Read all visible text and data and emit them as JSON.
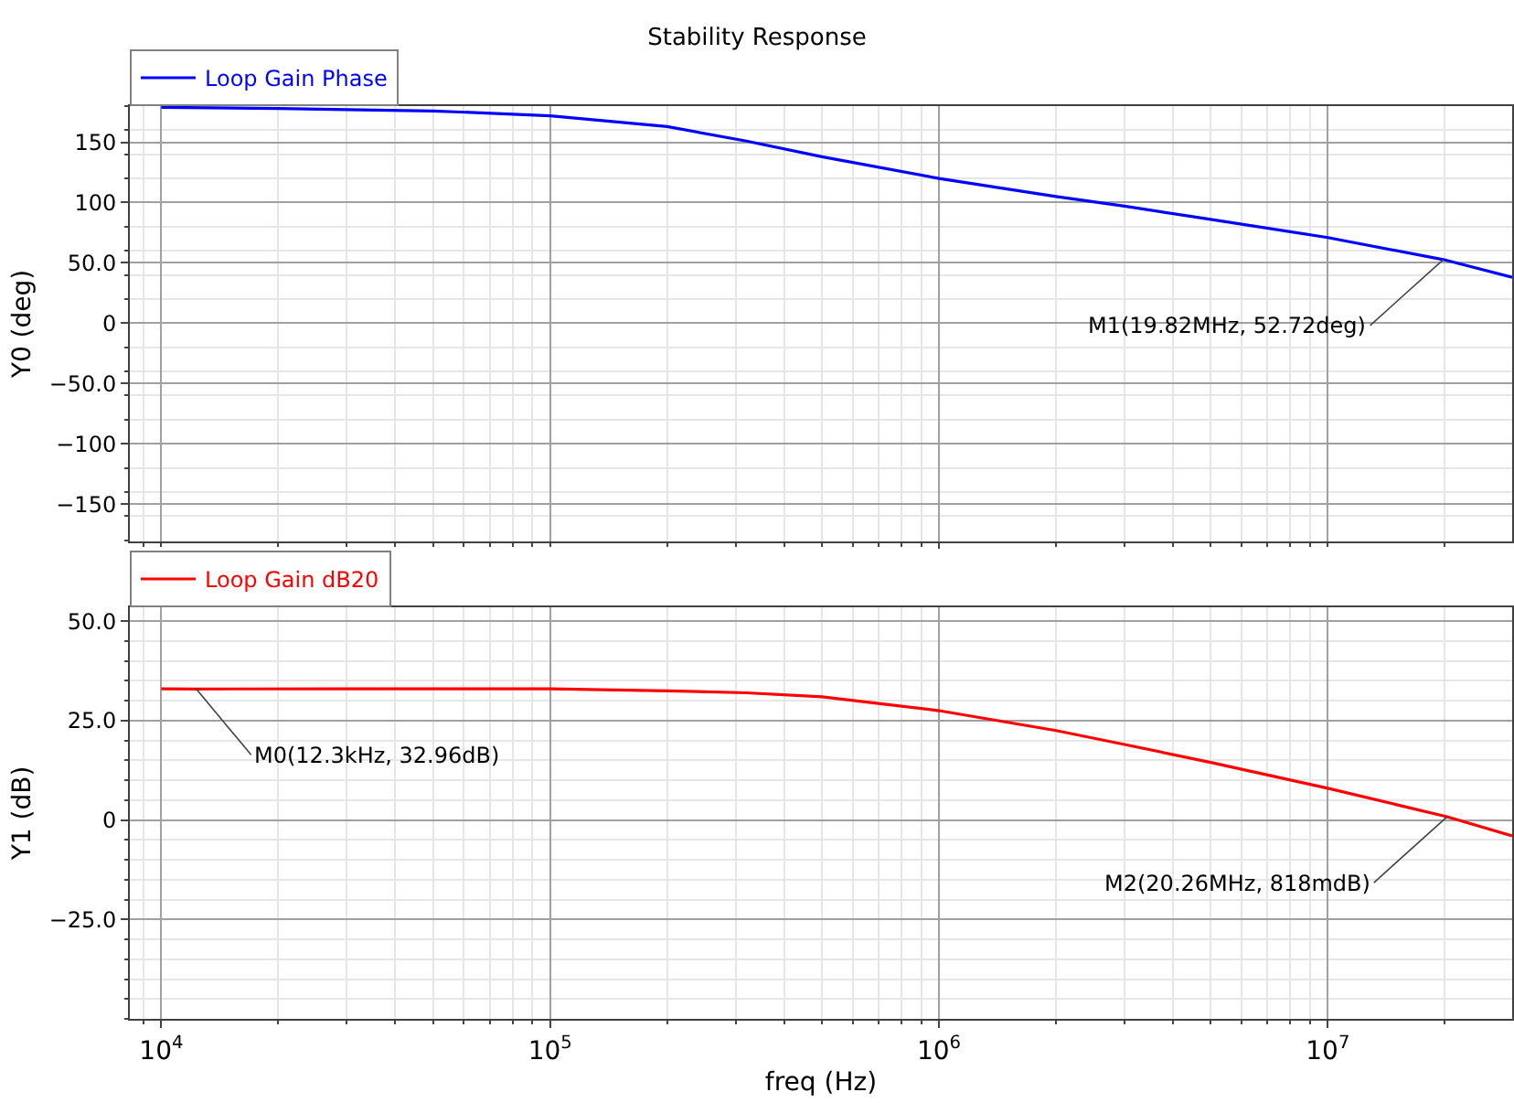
{
  "chart_data": [
    {
      "type": "line",
      "title": "Stability Response",
      "ylabel": "Y0 (deg)",
      "log": "x",
      "xlim": [
        8300,
        29800000
      ],
      "xticks": [
        {
          "value": 10000,
          "label": null
        },
        {
          "value": 100000,
          "label": null
        },
        {
          "value": 1000000,
          "label": null
        },
        {
          "value": 10000000,
          "label": null
        }
      ],
      "ylim": [
        -181,
        180
      ],
      "yticks": [
        150,
        100,
        {
          "value": 50,
          "label": "50.0"
        },
        0,
        {
          "value": -50,
          "label": "−50.0"
        },
        {
          "value": -100,
          "label": "−100"
        },
        {
          "value": -150,
          "label": "−150"
        }
      ],
      "grid": true,
      "legend": "top left",
      "tick_labels": "y",
      "series": [
        {
          "name": "Loop Gain Phase",
          "color": "#0000ff",
          "x": [
            10000,
            20000,
            30000,
            50000,
            100000,
            200000,
            320000,
            500000,
            1000000,
            2000000,
            3000000,
            5000000,
            10000000,
            19820000,
            29800000
          ],
          "values": [
            179,
            178,
            177,
            176,
            172,
            163,
            151,
            138,
            120,
            105,
            97,
            86,
            71,
            52.72,
            38
          ]
        }
      ],
      "annotations": [
        {
          "text": "M1(19.82MHz, 52.72deg)",
          "x": 19820000,
          "y": 52.72
        }
      ]
    },
    {
      "type": "line",
      "xlabel": "freq (Hz)",
      "ylabel": "Y1 (dB)",
      "log": "x",
      "xlim": [
        8300,
        29800000
      ],
      "xticks": [
        {
          "value": 10000,
          "label": "10$^{4}$"
        },
        {
          "value": 100000,
          "label": "10$^{5}$"
        },
        {
          "value": 1000000,
          "label": "10$^{6}$"
        },
        {
          "value": 10000000,
          "label": "10$^{7}$"
        }
      ],
      "ylim": [
        -50,
        53.5
      ],
      "yticks": [
        {
          "value": 50,
          "label": "50.0"
        },
        {
          "value": 25,
          "label": "25.0"
        },
        0,
        {
          "value": -25,
          "label": "−25.0"
        }
      ],
      "grid": true,
      "legend": "top left",
      "series": [
        {
          "name": "Loop Gain dB20",
          "color": "#ff0000",
          "x": [
            10000,
            12300,
            30000,
            100000,
            200000,
            320000,
            500000,
            1000000,
            2000000,
            3000000,
            5000000,
            10000000,
            20260000,
            29800000
          ],
          "values": [
            33,
            32.96,
            33,
            33,
            32.5,
            32,
            31,
            27.5,
            22.5,
            19,
            14.5,
            8,
            0.818,
            -4
          ]
        }
      ],
      "annotations": [
        {
          "text": "M0(12.3kHz, 32.96dB)",
          "x": 12300,
          "y": 32.96
        },
        {
          "text": "M2(20.26MHz, 818mdB)",
          "x": 20260000,
          "y": 0.818
        }
      ]
    }
  ]
}
